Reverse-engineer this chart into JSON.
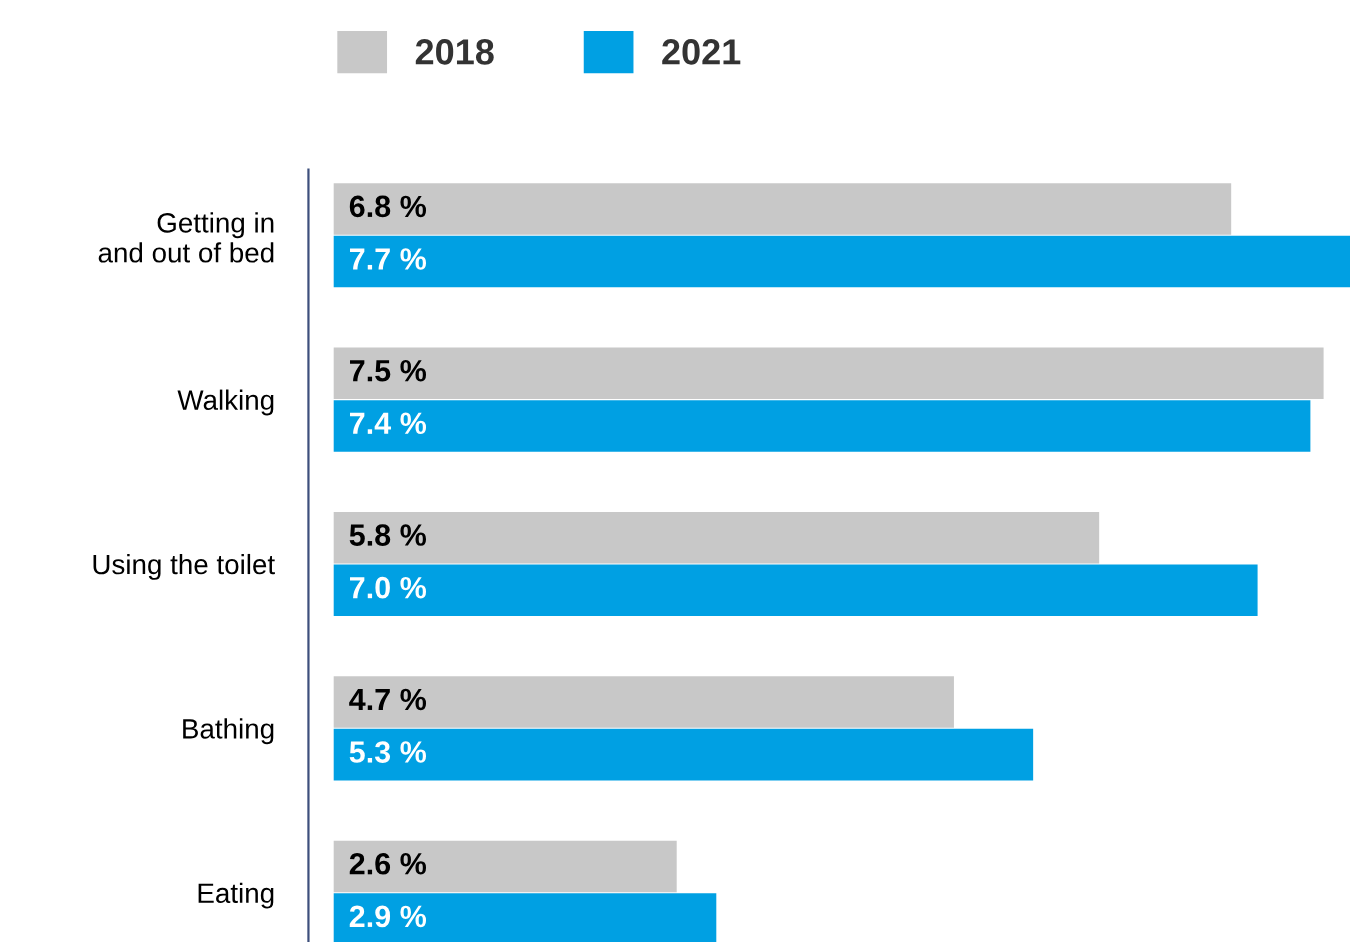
{
  "chart_data": {
    "type": "bar",
    "orientation": "horizontal",
    "categories": [
      "Getting in\nand out of bed",
      "Walking",
      "Using the toilet",
      "Bathing",
      "Eating"
    ],
    "series": [
      {
        "name": "2018",
        "color": "#c8c8c8",
        "values": [
          6.8,
          7.5,
          5.8,
          4.7,
          2.6
        ],
        "value_labels": [
          "6.8 %",
          "7.5 %",
          "5.8 %",
          "4.7 %",
          "2.6 %"
        ]
      },
      {
        "name": "2021",
        "color": "#00a0e3",
        "values": [
          7.7,
          7.4,
          7.0,
          5.3,
          2.9
        ],
        "value_labels": [
          "7.7 %",
          "7.4 %",
          "7.0 %",
          "5.3 %",
          "2.9 %"
        ]
      }
    ],
    "legend": "top",
    "grid": false
  }
}
